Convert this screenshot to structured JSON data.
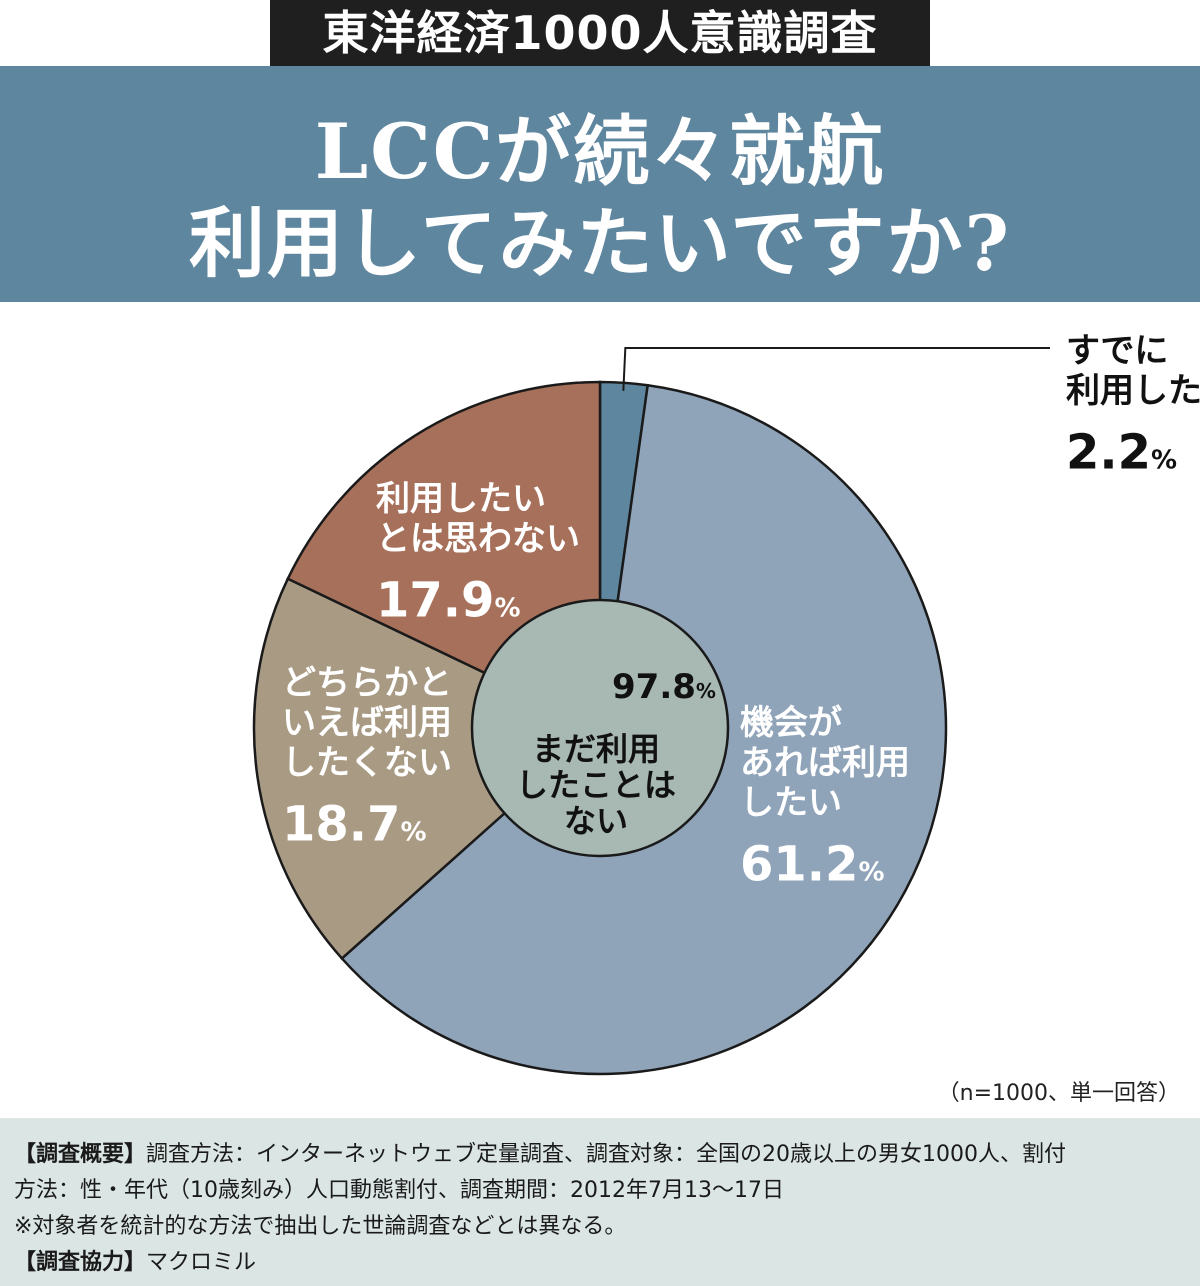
{
  "header": {
    "kicker": "東洋経済1000人意識調査",
    "title_line1": "LCCが続々就航",
    "title_line2": "利用してみたいですか?"
  },
  "chart_data": {
    "type": "pie",
    "inner_label": {
      "lines": [
        "まだ利用",
        "したことは",
        "ない"
      ],
      "value": "97.8",
      "unit": "%"
    },
    "slices": [
      {
        "label_lines": [
          "すでに",
          "利用した"
        ],
        "value": 2.2,
        "value_text": "2.2",
        "color": "#5f869f"
      },
      {
        "label_lines": [
          "機会が",
          "あれば利用",
          "したい"
        ],
        "value": 61.2,
        "value_text": "61.2",
        "color": "#8fa3b9"
      },
      {
        "label_lines": [
          "どちらかと",
          "いえば利用",
          "したくない"
        ],
        "value": 18.7,
        "value_text": "18.7",
        "color": "#a99a84"
      },
      {
        "label_lines": [
          "利用したい",
          "とは思わない"
        ],
        "value": 17.9,
        "value_text": "17.9",
        "color": "#a7705a"
      }
    ],
    "inner_color": "#a8b9b4",
    "unit": "%"
  },
  "note": "（n=1000、単一回答）",
  "footer": {
    "line1_label": "【調査概要】",
    "line1_text": "調査方法：インターネットウェブ定量調査、調査対象：全国の20歳以上の男女1000人、割付",
    "line2_text": "方法：性・年代（10歳刻み）人口動態割付、調査期間：2012年7月13〜17日",
    "line3_text": "※対象者を統計的な方法で抽出した世論調査などとは異なる。",
    "line4_label": "【調査協力】",
    "line4_text": "マクロミル"
  }
}
